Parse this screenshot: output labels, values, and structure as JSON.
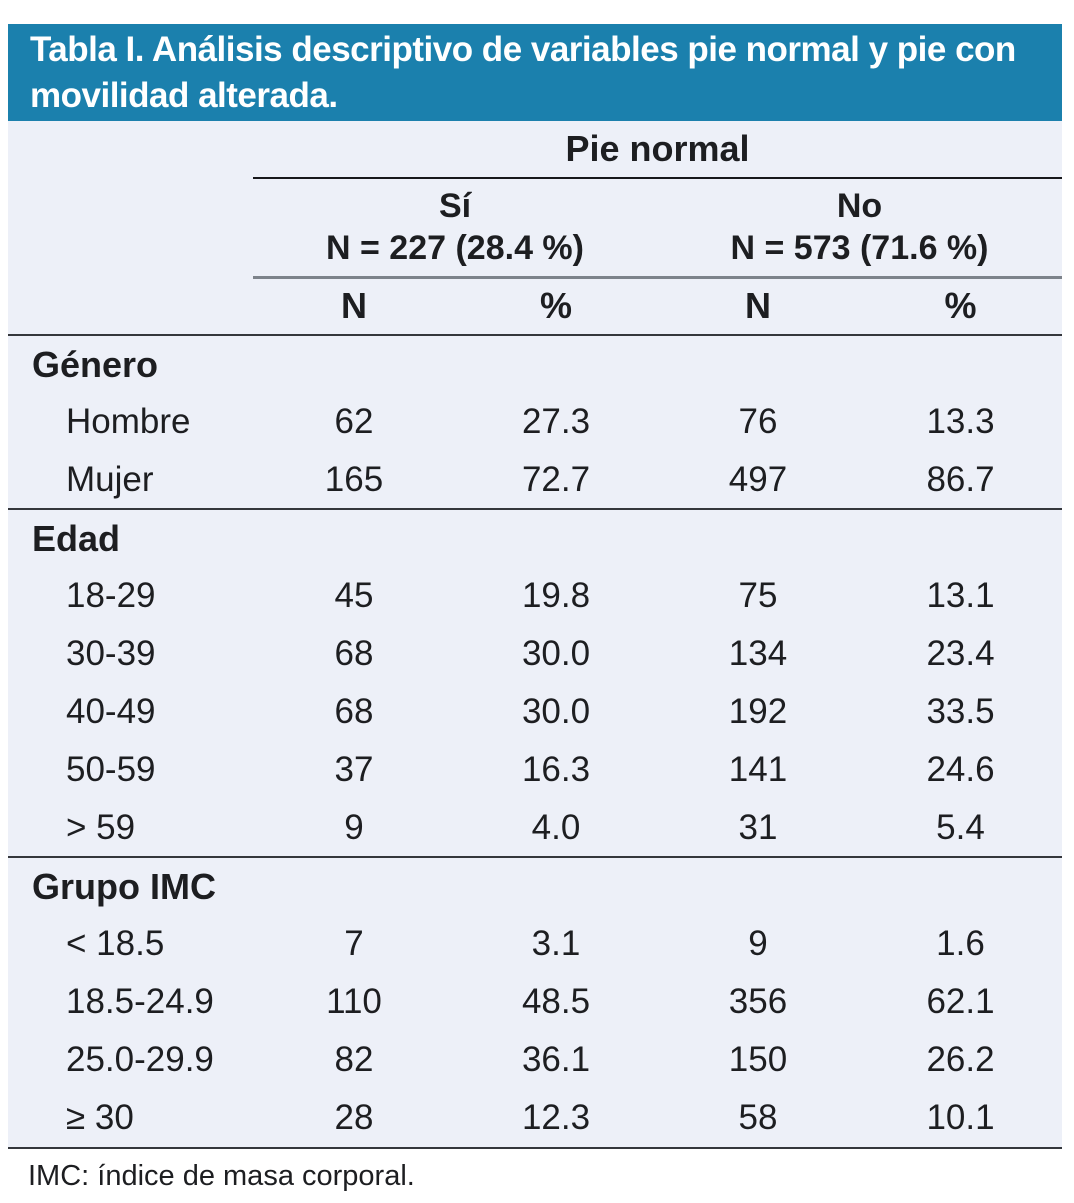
{
  "title": "Tabla I. Análisis descriptivo de variables pie normal y pie con movilidad alterada.",
  "colors": {
    "header_bg": "#1b80ad",
    "table_bg": "#edf0f8",
    "text": "#1d1e21",
    "line_gray": "#7d838b",
    "line_black": "#17181b",
    "line_dark": "#34373c"
  },
  "table": {
    "group_header": "Pie normal",
    "subgroups": [
      {
        "label": "Sí",
        "sub": "N = 227 (28.4 %)"
      },
      {
        "label": "No",
        "sub": "N = 573 (71.6 %)"
      }
    ],
    "columns": [
      "N",
      "%",
      "N",
      "%"
    ],
    "sections": [
      {
        "header": "Género",
        "rows": [
          {
            "label": "Hombre",
            "values": [
              "62",
              "27.3",
              "76",
              "13.3"
            ]
          },
          {
            "label": "Mujer",
            "values": [
              "165",
              "72.7",
              "497",
              "86.7"
            ]
          }
        ]
      },
      {
        "header": "Edad",
        "rows": [
          {
            "label": "18-29",
            "values": [
              "45",
              "19.8",
              "75",
              "13.1"
            ]
          },
          {
            "label": "30-39",
            "values": [
              "68",
              "30.0",
              "134",
              "23.4"
            ]
          },
          {
            "label": "40-49",
            "values": [
              "68",
              "30.0",
              "192",
              "33.5"
            ]
          },
          {
            "label": "50-59",
            "values": [
              "37",
              "16.3",
              "141",
              "24.6"
            ]
          },
          {
            "label": "> 59",
            "values": [
              "9",
              "4.0",
              "31",
              "5.4"
            ]
          }
        ]
      },
      {
        "header": "Grupo IMC",
        "rows": [
          {
            "label": "< 18.5",
            "values": [
              "7",
              "3.1",
              "9",
              "1.6"
            ]
          },
          {
            "label": "18.5-24.9",
            "values": [
              "110",
              "48.5",
              "356",
              "62.1"
            ]
          },
          {
            "label": "25.0-29.9",
            "values": [
              "82",
              "36.1",
              "150",
              "26.2"
            ]
          },
          {
            "label": "≥ 30",
            "values": [
              "28",
              "12.3",
              "58",
              "10.1"
            ]
          }
        ]
      }
    ]
  },
  "footnote": "IMC: índice de masa corporal."
}
